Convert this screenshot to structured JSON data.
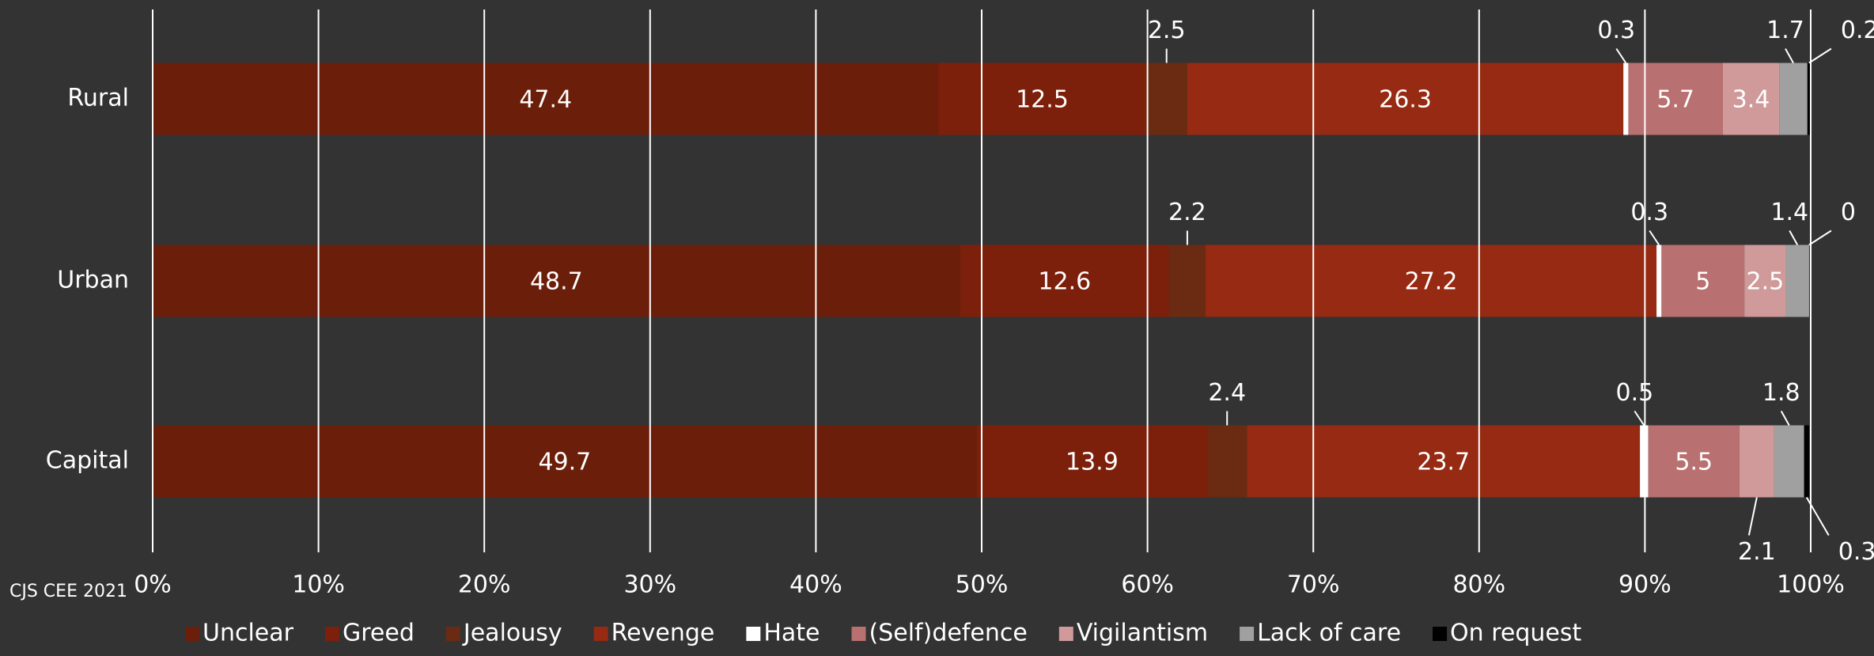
{
  "chart_data": {
    "type": "stacked-barh",
    "source": "CJS CEE 2021",
    "categories": [
      "Rural",
      "Urban",
      "Capital"
    ],
    "series": [
      {
        "name": "Unclear",
        "color": "#6b1e0a",
        "values": [
          47.4,
          48.7,
          49.7
        ]
      },
      {
        "name": "Greed",
        "color": "#7c200c",
        "values": [
          12.5,
          12.6,
          13.9
        ]
      },
      {
        "name": "Jealousy",
        "color": "#6a2b12",
        "values": [
          2.5,
          2.2,
          2.4
        ]
      },
      {
        "name": "Revenge",
        "color": "#962a12",
        "values": [
          26.3,
          27.2,
          23.7
        ]
      },
      {
        "name": "Hate",
        "color": "#ffffff",
        "values": [
          0.3,
          0.3,
          0.5
        ]
      },
      {
        "name": "(Self)defence",
        "color": "#b87070",
        "values": [
          5.7,
          5,
          5.5
        ]
      },
      {
        "name": "Vigilantism",
        "color": "#d09a9a",
        "values": [
          3.4,
          2.5,
          2.1
        ]
      },
      {
        "name": "Lack of care",
        "color": "#a0a0a0",
        "values": [
          1.7,
          1.4,
          1.8
        ]
      },
      {
        "name": "On request",
        "color": "#000000",
        "values": [
          0.2,
          0,
          0.3
        ]
      }
    ],
    "xlim": [
      0,
      100
    ],
    "xticks": [
      {
        "value": 0,
        "label": "0%"
      },
      {
        "value": 10,
        "label": "10%"
      },
      {
        "value": 20,
        "label": "20%"
      },
      {
        "value": 30,
        "label": "30%"
      },
      {
        "value": 40,
        "label": "40%"
      },
      {
        "value": 50,
        "label": "50%"
      },
      {
        "value": 60,
        "label": "60%"
      },
      {
        "value": 70,
        "label": "70%"
      },
      {
        "value": 80,
        "label": "80%"
      },
      {
        "value": 90,
        "label": "90%"
      },
      {
        "value": 100,
        "label": "100%"
      }
    ],
    "grid": true,
    "legend": "bottom"
  }
}
